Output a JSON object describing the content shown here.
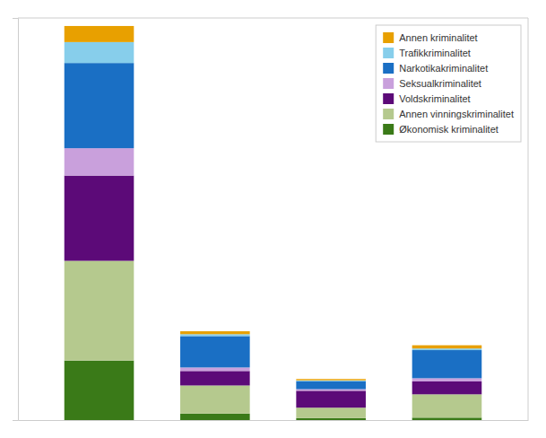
{
  "chart_data": {
    "type": "bar",
    "stacked": true,
    "categories": [
      null,
      null,
      null,
      null
    ],
    "series": [
      {
        "name": "Økonomisk kriminalitet",
        "color": "#3a7a18",
        "values": [
          370,
          40,
          12,
          15
        ]
      },
      {
        "name": "Annen vinningskriminalitet",
        "color": "#b5c98e",
        "values": [
          620,
          175,
          65,
          145
        ]
      },
      {
        "name": "Voldskriminalitet",
        "color": "#5c0a78",
        "values": [
          530,
          90,
          105,
          80
        ]
      },
      {
        "name": "Seksualkriminalitet",
        "color": "#c9a0dc",
        "values": [
          170,
          22,
          10,
          20
        ]
      },
      {
        "name": "Narkotikakriminalitet",
        "color": "#1a6fc4",
        "values": [
          530,
          195,
          50,
          175
        ]
      },
      {
        "name": "Trafikkriminalitet",
        "color": "#87ceeb",
        "values": [
          130,
          12,
          5,
          10
        ]
      },
      {
        "name": "Annen kriminalitet",
        "color": "#e8a000",
        "values": [
          100,
          18,
          8,
          20
        ]
      }
    ],
    "ylim": [
      0,
      2500
    ],
    "yticks": [],
    "grid": false,
    "tick_labels": false,
    "legend": "upper right"
  }
}
